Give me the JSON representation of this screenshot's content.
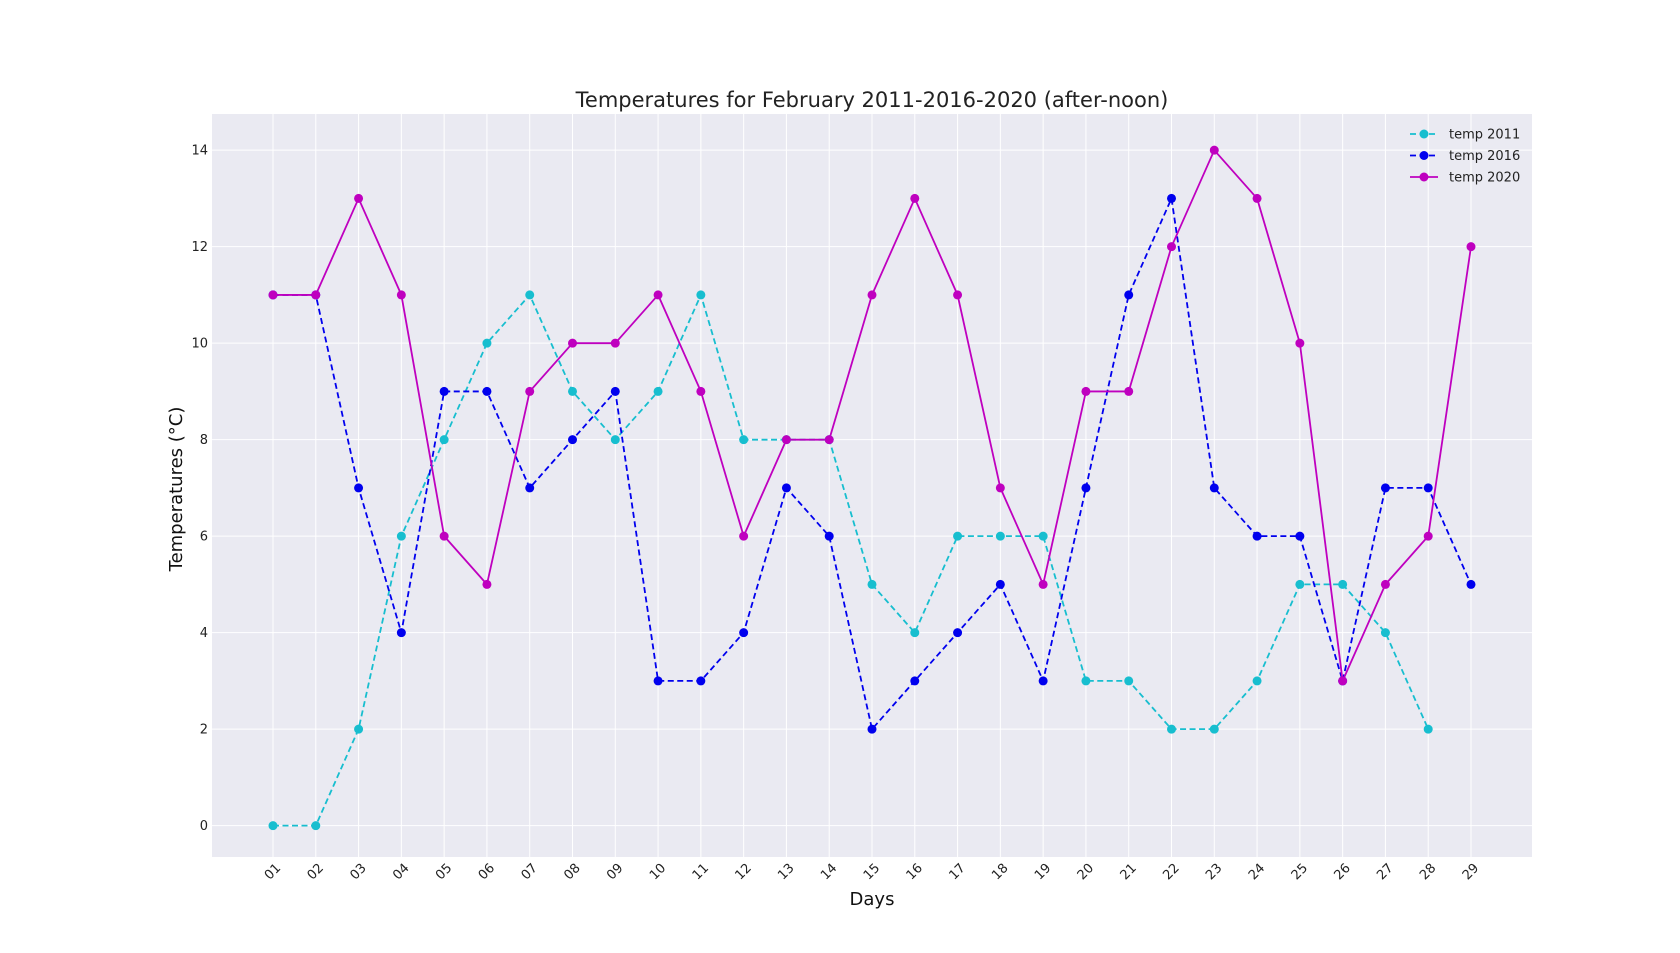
{
  "chart_data": {
    "type": "line",
    "title": "Temperatures for February 2011-2016-2020 (after-noon)",
    "xlabel": "Days",
    "ylabel": "Temperatures (°C)",
    "categories": [
      "01",
      "02",
      "03",
      "04",
      "05",
      "06",
      "07",
      "08",
      "09",
      "10",
      "11",
      "12",
      "13",
      "14",
      "15",
      "16",
      "17",
      "18",
      "19",
      "20",
      "21",
      "22",
      "23",
      "24",
      "25",
      "26",
      "27",
      "28",
      "29"
    ],
    "ylim": [
      -0.65,
      14.75
    ],
    "yticks": [
      0,
      2,
      4,
      6,
      8,
      10,
      12,
      14
    ],
    "grid": true,
    "legend_position": "top-right",
    "series": [
      {
        "name": "temp 2011",
        "color": "#17becf",
        "line_style": "dashed",
        "values": [
          0,
          0,
          2,
          6,
          8,
          10,
          11,
          9,
          8,
          9,
          11,
          8,
          8,
          8,
          5,
          4,
          6,
          6,
          6,
          3,
          3,
          2,
          2,
          3,
          5,
          5,
          4,
          2,
          null
        ]
      },
      {
        "name": "temp 2016",
        "color": "#0000ee",
        "line_style": "dashed",
        "values": [
          11,
          11,
          7,
          4,
          9,
          9,
          7,
          8,
          9,
          3,
          3,
          4,
          7,
          6,
          2,
          3,
          4,
          5,
          3,
          7,
          11,
          13,
          7,
          6,
          6,
          3,
          7,
          7,
          5
        ]
      },
      {
        "name": "temp 2020",
        "color": "#bf00bf",
        "line_style": "solid",
        "values": [
          11,
          11,
          13,
          11,
          6,
          5,
          9,
          10,
          10,
          11,
          9,
          6,
          8,
          8,
          11,
          13,
          11,
          7,
          5,
          9,
          9,
          12,
          14,
          13,
          10,
          3,
          5,
          6,
          12
        ]
      }
    ]
  }
}
